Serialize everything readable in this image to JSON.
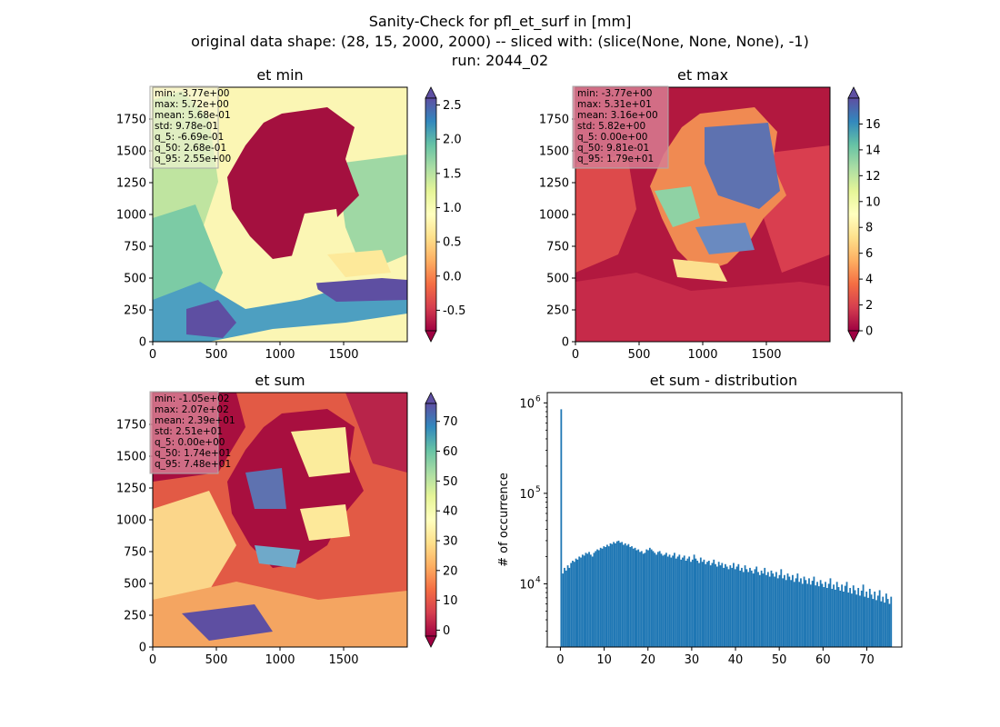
{
  "figure": {
    "title_lines": [
      "Sanity-Check for pfl_et_surf in [mm]",
      "original data shape: (28, 15, 2000, 2000) -- sliced with: (slice(None, None, None), -1)",
      "run: 2044_02"
    ]
  },
  "colormap": "Spectral",
  "maps": [
    {
      "id": "et-min",
      "title": "et min",
      "xticks": [
        "0",
        "500",
        "1000",
        "1500"
      ],
      "yticks": [
        "0",
        "250",
        "500",
        "750",
        "1000",
        "1250",
        "1500",
        "1750"
      ],
      "colorbar": {
        "ticks": [
          "-0.5",
          "0.0",
          "0.5",
          "1.0",
          "1.5",
          "2.0",
          "2.5"
        ],
        "tick_values": [
          -0.5,
          0.0,
          0.5,
          1.0,
          1.5,
          2.0,
          2.5
        ],
        "range": [
          -0.8,
          2.6
        ]
      },
      "stats": [
        "min: -3.77e+00",
        "max: 5.72e+00",
        "mean: 5.68e-01",
        "std: 9.78e-01",
        "q_5: -6.69e-01",
        "q_50: 2.68e-01",
        "q_95: 2.55e+00"
      ],
      "stats_box_color": "#f7f5d9",
      "background_color": "#fbf6b4",
      "country_color": "#a4103f"
    },
    {
      "id": "et-max",
      "title": "et max",
      "xticks": [
        "0",
        "500",
        "1000",
        "1500"
      ],
      "yticks": [
        "0",
        "250",
        "500",
        "750",
        "1000",
        "1250",
        "1500",
        "1750"
      ],
      "colorbar": {
        "ticks": [
          "0",
          "2",
          "4",
          "6",
          "8",
          "10",
          "12",
          "14",
          "16"
        ],
        "tick_values": [
          0,
          2,
          4,
          6,
          8,
          10,
          12,
          14,
          16
        ],
        "range": [
          0,
          18
        ]
      },
      "stats": [
        "min: -3.77e+00",
        "max: 5.31e+01",
        "mean: 3.16e+00",
        "std: 5.82e+00",
        "q_5: 0.00e+00",
        "q_50: 9.81e-01",
        "q_95: 1.79e+01"
      ],
      "stats_box_color": "#d77c92",
      "background_color": "#b2183f",
      "country_color": "#f08a52"
    },
    {
      "id": "et-sum",
      "title": "et sum",
      "xticks": [
        "0",
        "500",
        "1000",
        "1500"
      ],
      "yticks": [
        "0",
        "250",
        "500",
        "750",
        "1000",
        "1250",
        "1500",
        "1750"
      ],
      "colorbar": {
        "ticks": [
          "0",
          "10",
          "20",
          "30",
          "40",
          "50",
          "60",
          "70"
        ],
        "tick_values": [
          0,
          10,
          20,
          30,
          40,
          50,
          60,
          70
        ],
        "range": [
          -2,
          76
        ]
      },
      "stats": [
        "min: -1.05e+02",
        "max: 2.07e+02",
        "mean: 2.39e+01",
        "std: 2.51e+01",
        "q_5: 0.00e+00",
        "q_50: 1.74e+01",
        "q_95: 7.48e+01"
      ],
      "stats_box_color": "#d77c92",
      "background_color": "#e25a45",
      "country_color": "#a80f3f"
    }
  ],
  "chart_data": {
    "type": "bar",
    "title": "et sum - distribution",
    "xlabel": "",
    "ylabel": "# of occurrence",
    "yscale": "log",
    "xlim": [
      -3,
      78
    ],
    "ylim": [
      2000,
      1300000
    ],
    "xticks": [
      "0",
      "10",
      "20",
      "30",
      "40",
      "50",
      "60",
      "70"
    ],
    "ytick_labels": [
      {
        "base": "10",
        "exp": "4",
        "value": 10000
      },
      {
        "base": "10",
        "exp": "5",
        "value": 100000
      },
      {
        "base": "10",
        "exp": "6",
        "value": 1000000
      }
    ],
    "color": "#1f77b4",
    "bin_start": 0,
    "bin_width": 0.375,
    "values": [
      850000,
      13000,
      15000,
      14000,
      16000,
      15000,
      17000,
      18000,
      17500,
      19000,
      18500,
      20000,
      19500,
      21000,
      20500,
      22000,
      21500,
      22500,
      21000,
      20000,
      22000,
      23000,
      24000,
      23500,
      25000,
      24500,
      26000,
      25500,
      27000,
      26000,
      28000,
      27500,
      29000,
      28000,
      29500,
      30000,
      28500,
      29000,
      27000,
      28000,
      26500,
      27500,
      25500,
      26000,
      24500,
      25000,
      23500,
      24000,
      22500,
      23000,
      21500,
      22000,
      24000,
      23500,
      25000,
      24000,
      23000,
      22000,
      21000,
      22500,
      23000,
      21500,
      20500,
      21000,
      22000,
      20000,
      21000,
      19500,
      20500,
      22000,
      19000,
      20000,
      21000,
      18500,
      19500,
      20500,
      18000,
      19000,
      20000,
      17500,
      18500,
      21000,
      19000,
      18000,
      17000,
      19500,
      17500,
      18500,
      16500,
      17500,
      18000,
      16000,
      17000,
      18500,
      16500,
      15500,
      17500,
      16000,
      17000,
      15000,
      16500,
      15500,
      14500,
      16000,
      15000,
      17000,
      14500,
      15500,
      16500,
      14000,
      15000,
      13500,
      16000,
      14500,
      13500,
      15000,
      14000,
      13000,
      14500,
      15500,
      13500,
      12500,
      14000,
      13000,
      15000,
      12500,
      13500,
      12000,
      14000,
      13000,
      12000,
      13500,
      11500,
      12500,
      14500,
      11500,
      12500,
      11000,
      13000,
      12000,
      11000,
      12500,
      10500,
      11500,
      13000,
      10500,
      11500,
      10000,
      12000,
      11000,
      10000,
      11500,
      9800,
      10800,
      12000,
      9600,
      10500,
      9400,
      11000,
      10000,
      9200,
      10500,
      9000,
      10000,
      11500,
      8800,
      9800,
      8600,
      10500,
      9200,
      8400,
      9800,
      8200,
      9500,
      10500,
      8000,
      9000,
      7800,
      9600,
      8500,
      7600,
      9000,
      7400,
      8400,
      9800,
      7200,
      8200,
      7000,
      8800,
      7600,
      6800,
      8200,
      6600,
      7400,
      8500,
      6400,
      7200,
      6200,
      7800,
      6800,
      6000,
      7200
    ]
  }
}
